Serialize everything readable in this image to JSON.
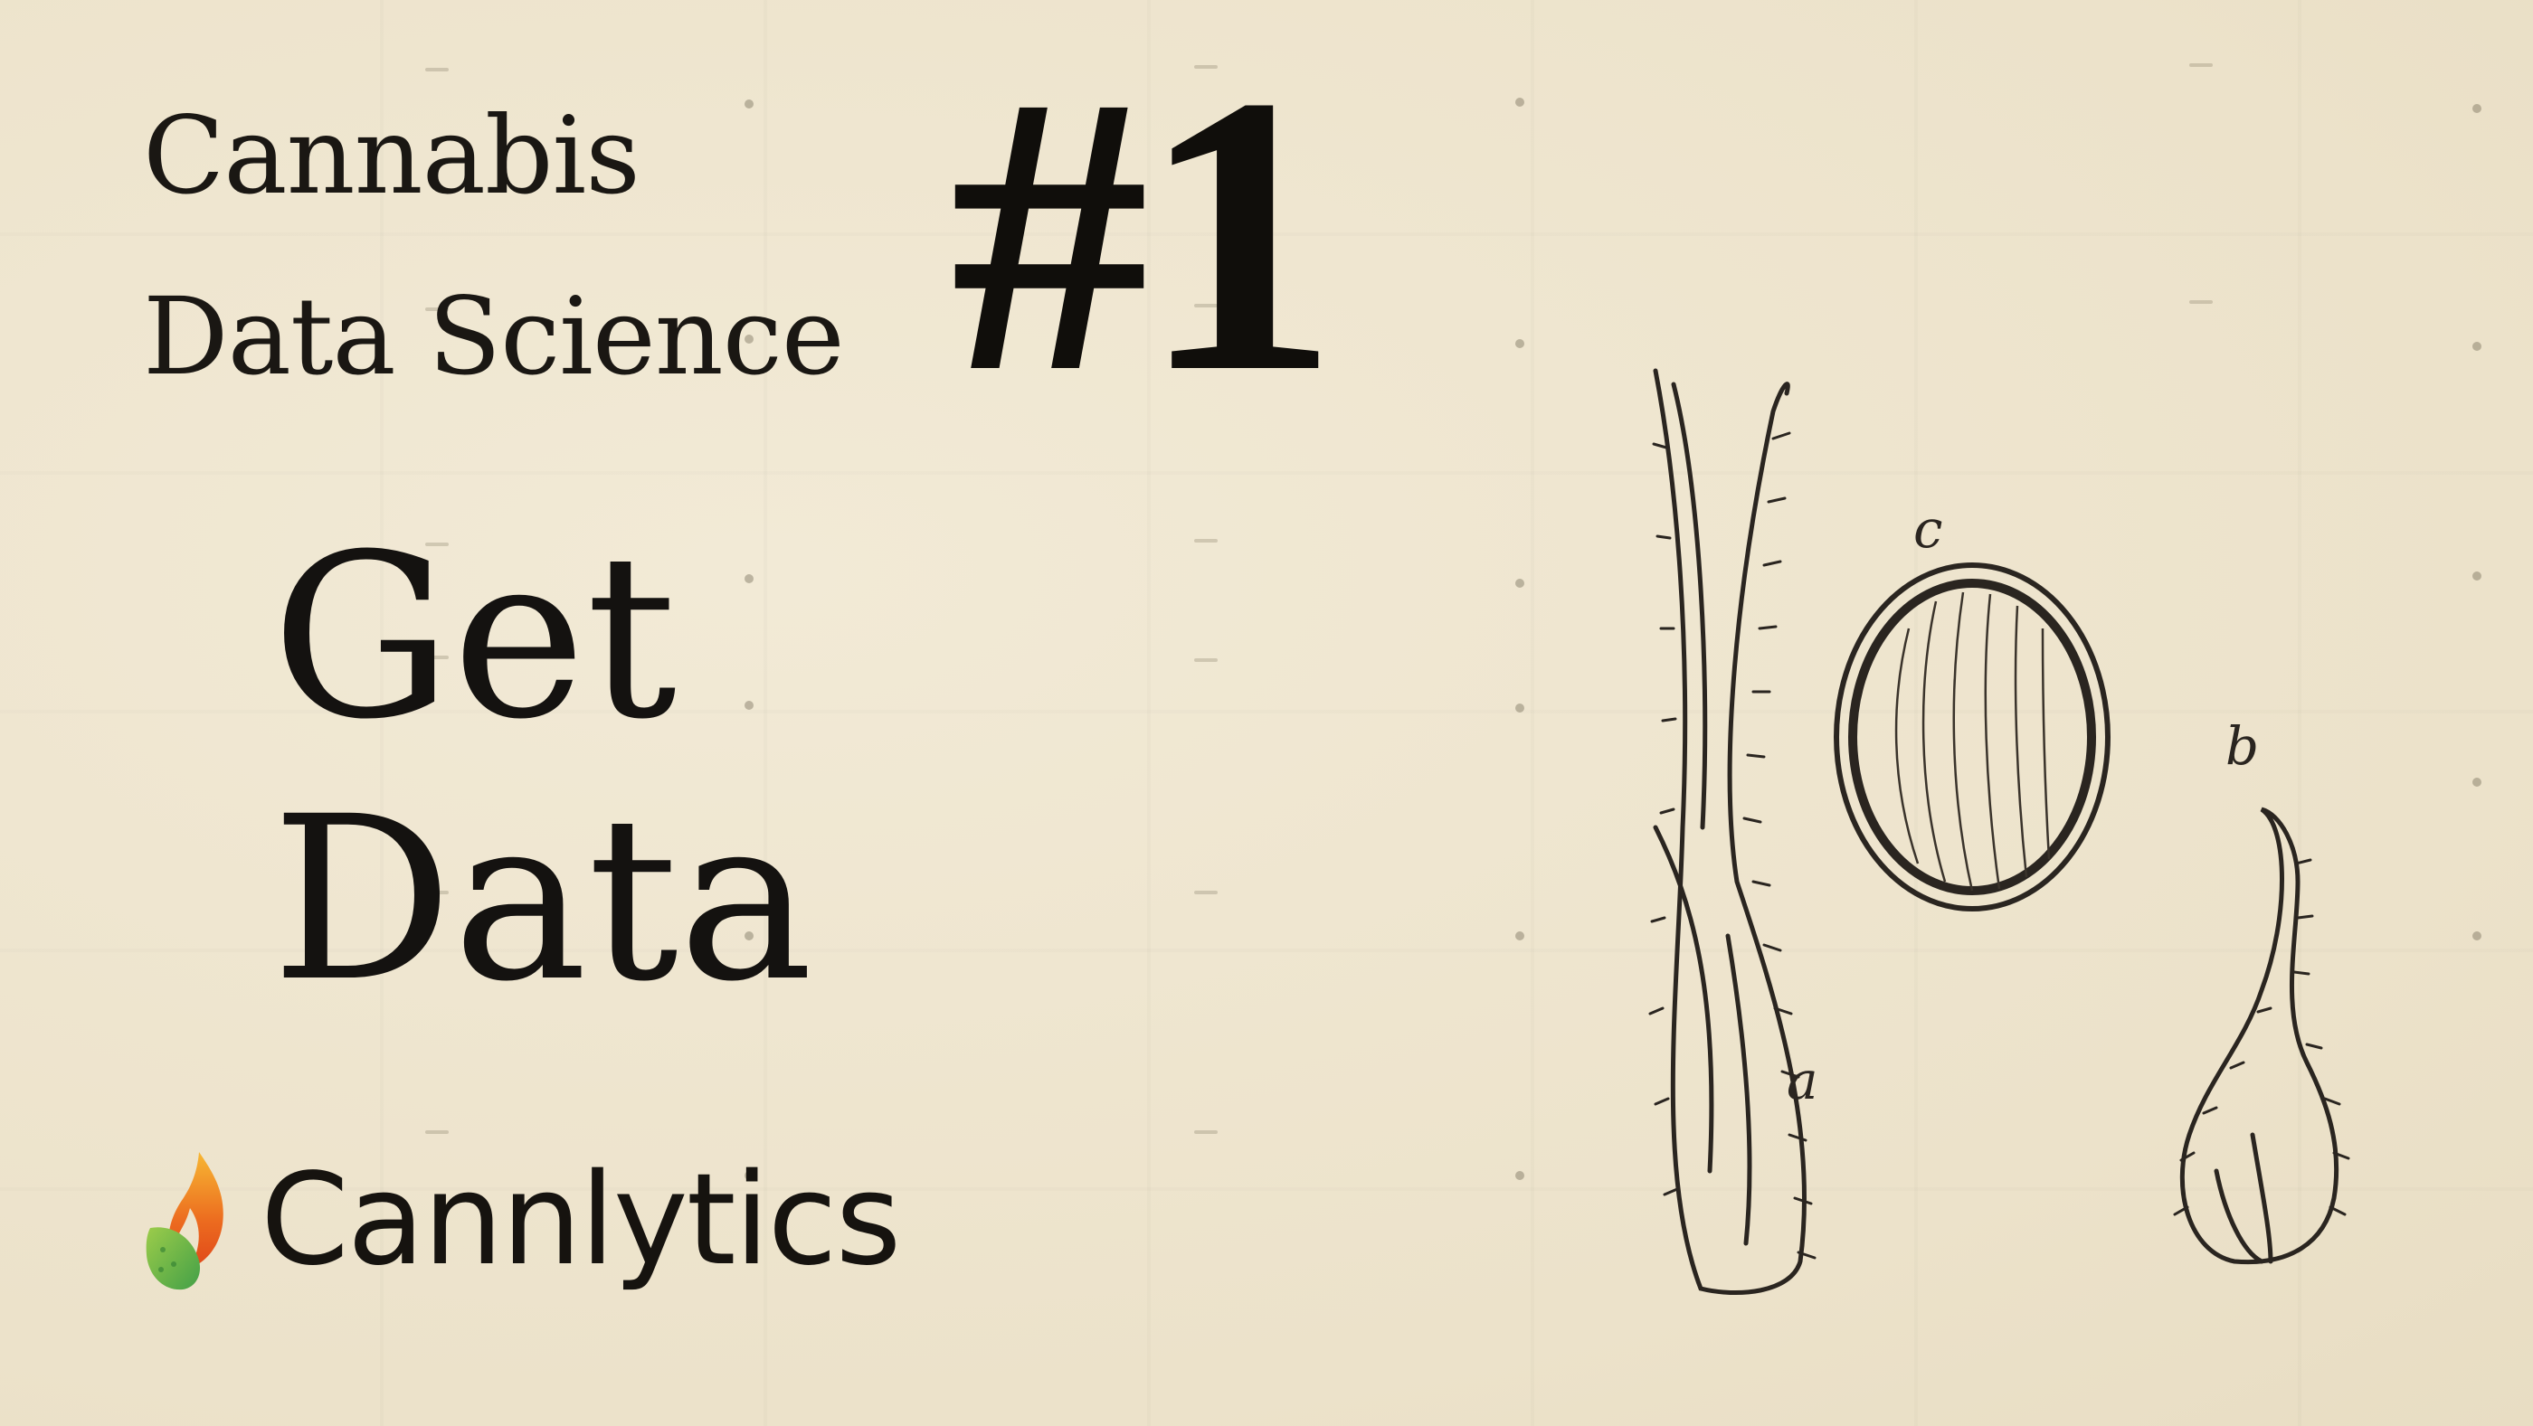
{
  "series": {
    "title_line1": "Cannabis",
    "title_line2": "Data Science",
    "episode_number": "#1"
  },
  "episode": {
    "title_line1": "Get",
    "title_line2": "Data"
  },
  "brand": {
    "name": "Cannlytics",
    "logo_icon": "flame-leaf-icon",
    "logo_colors": [
      "#f5a623",
      "#e8541e",
      "#8bc34a",
      "#4caf50"
    ]
  },
  "illustration": {
    "label_a": "a",
    "label_b": "b",
    "label_c": "c"
  },
  "colors": {
    "background": "#efe6d0",
    "ink": "#141210"
  }
}
